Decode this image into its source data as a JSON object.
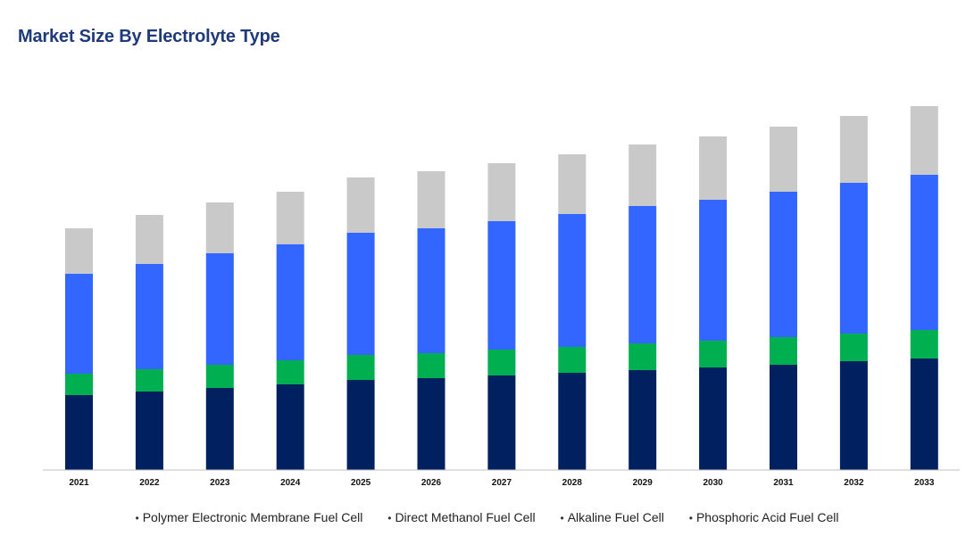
{
  "chart_data": {
    "type": "bar",
    "stacked": true,
    "title": "Market Size By Electrolyte Type",
    "xlabel": "",
    "ylabel": "",
    "grid": false,
    "legend_position": "bottom",
    "categories": [
      "2021",
      "2022",
      "2023",
      "2024",
      "2025",
      "2026",
      "2027",
      "2028",
      "2029",
      "2030",
      "2031",
      "2032",
      "2033"
    ],
    "series": [
      {
        "name": "Polymer Electronic Membrane Fuel Cell",
        "color": "#002060",
        "values": [
          84,
          88,
          92,
          96,
          101,
          103,
          106,
          109,
          112,
          115,
          118,
          122,
          125
        ]
      },
      {
        "name": "Direct Methanol Fuel Cell",
        "color": "#00b050",
        "values": [
          24,
          25,
          26,
          27,
          28,
          28,
          29,
          29,
          30,
          30,
          31,
          31,
          32
        ]
      },
      {
        "name": "Alkaline Fuel Cell",
        "color": "#3366ff",
        "values": [
          112,
          118,
          125,
          130,
          137,
          140,
          144,
          149,
          154,
          158,
          163,
          169,
          174
        ]
      },
      {
        "name": "Phosphoric Acid Fuel Cell",
        "color": "#c9c9c9",
        "values": [
          51,
          55,
          57,
          59,
          62,
          64,
          65,
          67,
          69,
          71,
          73,
          75,
          77
        ]
      }
    ],
    "ylim": [
      0,
      420
    ]
  }
}
